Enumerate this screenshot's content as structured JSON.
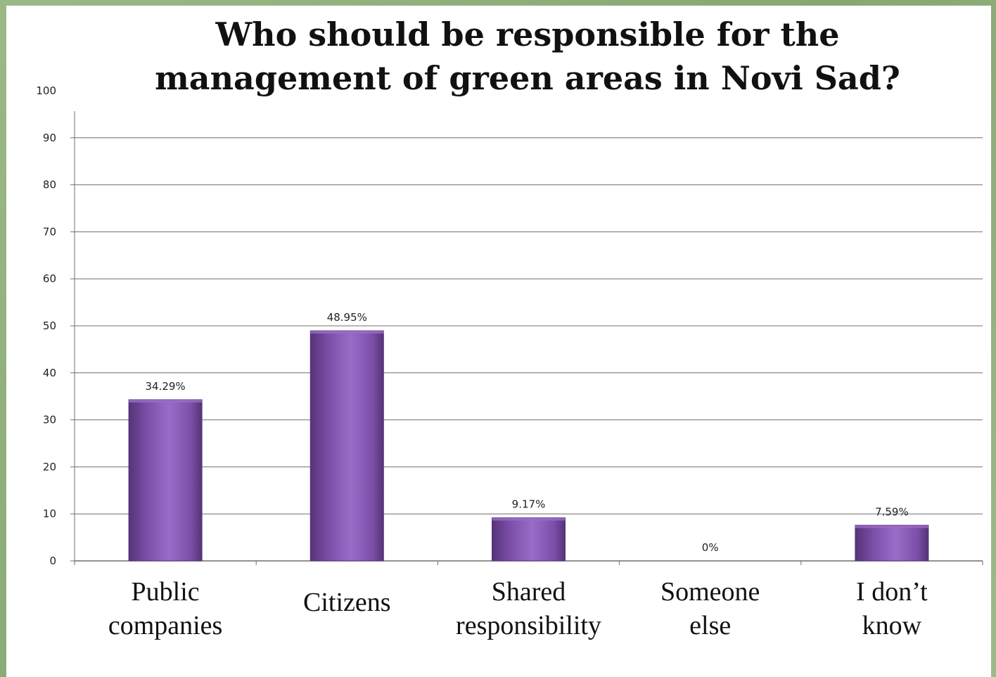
{
  "chart_data": {
    "type": "bar",
    "title_lines": [
      "Who should be responsible for the",
      "management of green areas in Novi Sad?"
    ],
    "categories": [
      [
        "Public",
        "companies"
      ],
      [
        "Citizens"
      ],
      [
        "Shared",
        "responsibility"
      ],
      [
        "Someone",
        "else"
      ],
      [
        "I don’t",
        "know"
      ]
    ],
    "values": [
      34.29,
      48.95,
      9.17,
      0,
      7.59
    ],
    "data_labels": [
      "34.29%",
      "48.95%",
      "9.17%",
      "0%",
      "7.59%"
    ],
    "ylim": [
      0,
      100
    ],
    "yticks": [
      0,
      10,
      20,
      30,
      40,
      50,
      60,
      70,
      80,
      90,
      100
    ],
    "grid": true,
    "legend": "none",
    "bar_color": "#7b4fa8",
    "bar_color_light": "#9a6cc8",
    "bar_color_dark": "#563378"
  }
}
